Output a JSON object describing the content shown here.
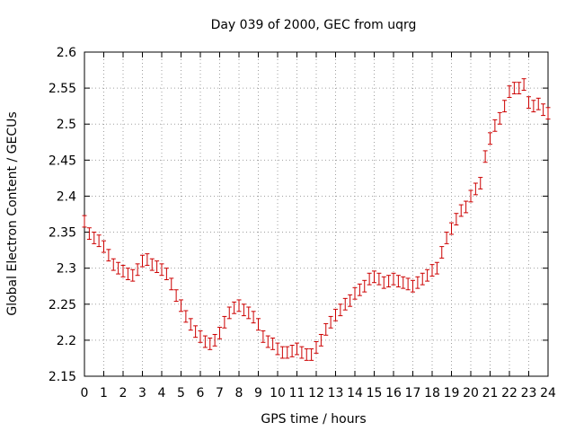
{
  "chart_data": {
    "type": "scatter",
    "title": "Day 039 of 2000, GEC from uqrg",
    "xlabel": "GPS time / hours",
    "ylabel": "Global Electron Content / GECUs",
    "xlim": [
      0,
      24
    ],
    "ylim": [
      2.15,
      2.6
    ],
    "xticks": [
      "0",
      "1",
      "2",
      "3",
      "4",
      "5",
      "6",
      "7",
      "8",
      "9",
      "10",
      "11",
      "12",
      "13",
      "14",
      "15",
      "16",
      "17",
      "18",
      "19",
      "20",
      "21",
      "22",
      "23",
      "24"
    ],
    "yticks": [
      "2.15",
      "2.2",
      "2.25",
      "2.3",
      "2.35",
      "2.4",
      "2.45",
      "2.5",
      "2.55",
      "2.6"
    ],
    "grid": true,
    "series": [
      {
        "color": "#cc0000",
        "marker": "errorbar",
        "error": 0.008,
        "x": [
          0,
          0.25,
          0.5,
          0.75,
          1,
          1.25,
          1.5,
          1.75,
          2,
          2.25,
          2.5,
          2.75,
          3,
          3.25,
          3.5,
          3.75,
          4,
          4.25,
          4.5,
          4.75,
          5,
          5.25,
          5.5,
          5.75,
          6,
          6.25,
          6.5,
          6.75,
          7,
          7.25,
          7.5,
          7.75,
          8,
          8.25,
          8.5,
          8.75,
          9,
          9.25,
          9.5,
          9.75,
          10,
          10.25,
          10.5,
          10.75,
          11,
          11.25,
          11.5,
          11.75,
          12,
          12.25,
          12.5,
          12.75,
          13,
          13.25,
          13.5,
          13.75,
          14,
          14.25,
          14.5,
          14.75,
          15,
          15.25,
          15.5,
          15.75,
          16,
          16.25,
          16.5,
          16.75,
          17,
          17.25,
          17.5,
          17.75,
          18,
          18.25,
          18.5,
          18.75,
          19,
          19.25,
          19.5,
          19.75,
          20,
          20.25,
          20.5,
          20.75,
          21,
          21.25,
          21.5,
          21.75,
          22,
          22.25,
          22.5,
          22.75,
          23,
          23.25,
          23.5,
          23.75,
          24
        ],
        "y": [
          2.365,
          2.348,
          2.342,
          2.338,
          2.33,
          2.318,
          2.305,
          2.3,
          2.296,
          2.292,
          2.29,
          2.298,
          2.31,
          2.312,
          2.305,
          2.302,
          2.298,
          2.292,
          2.278,
          2.262,
          2.248,
          2.233,
          2.222,
          2.212,
          2.205,
          2.198,
          2.195,
          2.2,
          2.21,
          2.225,
          2.238,
          2.245,
          2.248,
          2.242,
          2.238,
          2.232,
          2.222,
          2.205,
          2.198,
          2.195,
          2.188,
          2.183,
          2.183,
          2.185,
          2.188,
          2.183,
          2.18,
          2.18,
          2.19,
          2.2,
          2.215,
          2.225,
          2.235,
          2.242,
          2.25,
          2.255,
          2.265,
          2.27,
          2.275,
          2.285,
          2.288,
          2.285,
          2.28,
          2.282,
          2.285,
          2.282,
          2.28,
          2.278,
          2.275,
          2.28,
          2.285,
          2.29,
          2.297,
          2.3,
          2.322,
          2.342,
          2.355,
          2.368,
          2.38,
          2.385,
          2.4,
          2.41,
          2.418,
          2.455,
          2.48,
          2.498,
          2.508,
          2.525,
          2.545,
          2.55,
          2.55,
          2.555,
          2.53,
          2.525,
          2.528,
          2.52,
          2.515
        ]
      }
    ]
  }
}
